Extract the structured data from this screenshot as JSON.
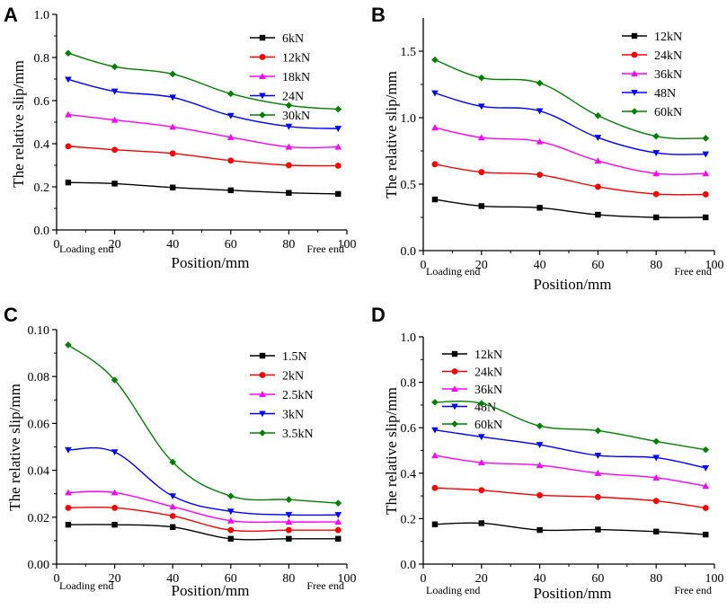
{
  "chart_data": [
    {
      "panel": "A",
      "type": "line",
      "xlabel": "Position/mm",
      "ylabel": "The relative slip/mm",
      "xlim": [
        0,
        100
      ],
      "ylim": [
        0,
        1.0
      ],
      "xticks": [
        "0",
        "20",
        "40",
        "60",
        "80",
        "100"
      ],
      "yticks": [
        "0.0",
        "0.2",
        "0.4",
        "0.6",
        "0.8",
        "1.0"
      ],
      "x_end_labels": {
        "left": "Loading end",
        "right": "Free end"
      },
      "legend_position": "top-right",
      "x": [
        4,
        20,
        40,
        60,
        80,
        97
      ],
      "series": [
        {
          "name": "6kN",
          "color": "#000000",
          "marker": "square",
          "values": [
            0.22,
            0.215,
            0.197,
            0.184,
            0.172,
            0.167
          ]
        },
        {
          "name": "12kN",
          "color": "#ff0000",
          "marker": "circle",
          "values": [
            0.388,
            0.372,
            0.355,
            0.322,
            0.3,
            0.298
          ]
        },
        {
          "name": "18kN",
          "color": "#ff00ff",
          "marker": "triangle-up",
          "values": [
            0.535,
            0.51,
            0.478,
            0.43,
            0.385,
            0.385
          ]
        },
        {
          "name": "24N",
          "color": "#0000ff",
          "marker": "triangle-down",
          "values": [
            0.698,
            0.643,
            0.615,
            0.53,
            0.48,
            0.47
          ]
        },
        {
          "name": "30kN",
          "color": "#008000",
          "marker": "diamond",
          "values": [
            0.82,
            0.757,
            0.723,
            0.632,
            0.578,
            0.56
          ]
        }
      ]
    },
    {
      "panel": "B",
      "type": "line",
      "xlabel": "Position/mm",
      "ylabel": "The relative slip/mm",
      "xlim": [
        0,
        100
      ],
      "ylim": [
        0,
        1.75
      ],
      "xticks": [
        "0",
        "20",
        "40",
        "60",
        "80",
        "100"
      ],
      "yticks": [
        "0.0",
        "0.5",
        "1.0",
        "1.5"
      ],
      "x_end_labels": {
        "left": "Loading end",
        "right": "Free end"
      },
      "legend_position": "top-right",
      "x": [
        4,
        20,
        40,
        60,
        80,
        97
      ],
      "series": [
        {
          "name": "12kN",
          "color": "#000000",
          "marker": "square",
          "values": [
            0.385,
            0.335,
            0.322,
            0.27,
            0.25,
            0.25
          ]
        },
        {
          "name": "24kN",
          "color": "#ff0000",
          "marker": "circle",
          "values": [
            0.65,
            0.59,
            0.57,
            0.48,
            0.425,
            0.423
          ]
        },
        {
          "name": "36kN",
          "color": "#ff00ff",
          "marker": "triangle-up",
          "values": [
            0.925,
            0.85,
            0.82,
            0.675,
            0.58,
            0.58
          ]
        },
        {
          "name": "48N",
          "color": "#0000ff",
          "marker": "triangle-down",
          "values": [
            1.185,
            1.085,
            1.05,
            0.85,
            0.735,
            0.725
          ]
        },
        {
          "name": "60kN",
          "color": "#008000",
          "marker": "diamond",
          "values": [
            1.435,
            1.3,
            1.26,
            1.015,
            0.86,
            0.845
          ]
        }
      ]
    },
    {
      "panel": "C",
      "type": "line",
      "xlabel": "Position/mm",
      "ylabel": "The relative slip/mm",
      "xlim": [
        0,
        100
      ],
      "ylim": [
        0,
        0.1
      ],
      "xticks": [
        "0",
        "20",
        "40",
        "60",
        "80",
        "100"
      ],
      "yticks": [
        "0.00",
        "0.02",
        "0.04",
        "0.06",
        "0.08",
        "0.10"
      ],
      "x_end_labels": {
        "left": "Loading end",
        "right": "Free end"
      },
      "legend_position": "top-right",
      "x": [
        4,
        20,
        40,
        60,
        80,
        97
      ],
      "series": [
        {
          "name": "1.5N",
          "color": "#000000",
          "marker": "square",
          "values": [
            0.0168,
            0.0168,
            0.0158,
            0.0108,
            0.0108,
            0.0108
          ]
        },
        {
          "name": "2kN",
          "color": "#ff0000",
          "marker": "circle",
          "values": [
            0.024,
            0.024,
            0.0205,
            0.0145,
            0.0145,
            0.0145
          ]
        },
        {
          "name": "2.5kN",
          "color": "#ff00ff",
          "marker": "triangle-up",
          "values": [
            0.0305,
            0.0305,
            0.0245,
            0.0185,
            0.018,
            0.018
          ]
        },
        {
          "name": "3kN",
          "color": "#0000ff",
          "marker": "triangle-down",
          "values": [
            0.0487,
            0.0478,
            0.029,
            0.0225,
            0.021,
            0.021
          ]
        },
        {
          "name": "3.5kN",
          "color": "#008000",
          "marker": "diamond",
          "values": [
            0.0935,
            0.0785,
            0.0435,
            0.029,
            0.0275,
            0.026
          ]
        }
      ]
    },
    {
      "panel": "D",
      "type": "line",
      "xlabel": "Position/mm",
      "ylabel": "The relative slip/mm",
      "xlim": [
        0,
        100
      ],
      "ylim": [
        0,
        1.0
      ],
      "xticks": [
        "0",
        "20",
        "40",
        "60",
        "80",
        "100"
      ],
      "yticks": [
        "0.0",
        "0.2",
        "0.4",
        "0.6",
        "0.8",
        "1.0"
      ],
      "x_end_labels": {
        "left": "Loading end",
        "right": "Free end"
      },
      "legend_position": "top-left",
      "x": [
        4,
        20,
        40,
        60,
        80,
        97
      ],
      "series": [
        {
          "name": "12kN",
          "color": "#000000",
          "marker": "square",
          "values": [
            0.175,
            0.18,
            0.15,
            0.152,
            0.143,
            0.13
          ]
        },
        {
          "name": "24kN",
          "color": "#ff0000",
          "marker": "circle",
          "values": [
            0.335,
            0.325,
            0.303,
            0.295,
            0.278,
            0.247
          ]
        },
        {
          "name": "36kN",
          "color": "#ff00ff",
          "marker": "triangle-up",
          "values": [
            0.478,
            0.447,
            0.435,
            0.4,
            0.38,
            0.343
          ]
        },
        {
          "name": "48N",
          "color": "#0000ff",
          "marker": "triangle-down",
          "values": [
            0.59,
            0.56,
            0.525,
            0.478,
            0.468,
            0.423
          ]
        },
        {
          "name": "60kN",
          "color": "#008000",
          "marker": "diamond",
          "values": [
            0.712,
            0.707,
            0.608,
            0.587,
            0.54,
            0.503
          ]
        }
      ]
    }
  ]
}
